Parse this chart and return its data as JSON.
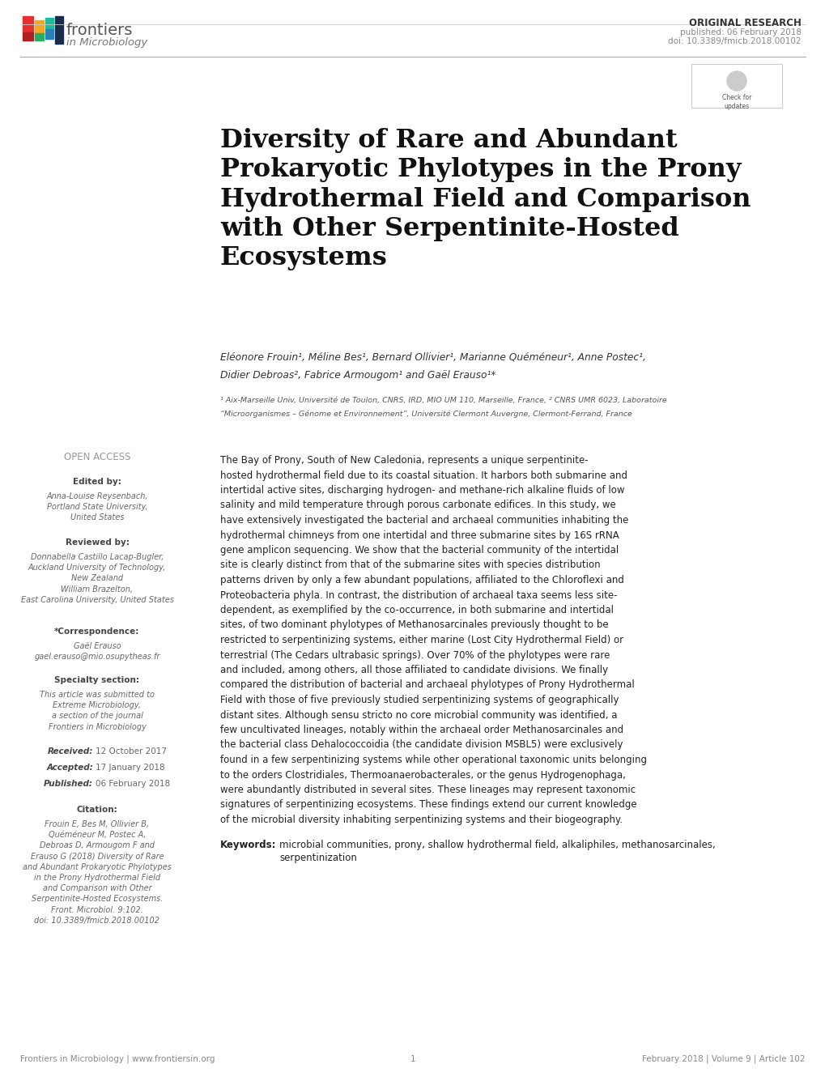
{
  "bg_color": "#ffffff",
  "title_text": "Diversity of Rare and Abundant\nProkaryotic Phylotypes in the Prony\nHydrothermal Field and Comparison\nwith Other Serpentinite-Hosted\nEcosystems",
  "authors_line1": "Eléonore Frouin¹, Méline Bes¹, Bernard Ollivier¹, Marianne Quéméneur¹, Anne Postec¹,",
  "authors_line2": "Didier Debroas², Fabrice Armougom¹ and Gaël Erauso¹*",
  "affiliation1": "¹ Aix-Marseille Univ, Université de Toulon, CNRS, IRD, MIO UM 110, Marseille, France, ² CNRS UMR 6023, Laboratoire",
  "affiliation2": "“Microorganismes – Génome et Environnement”, Université Clermont Auvergne, Clermont-Ferrand, France",
  "open_access_label": "OPEN ACCESS",
  "edited_by_label": "Edited by:",
  "edited_by_name": "Anna-Louise Reysenbach,\nPortland State University,\nUnited States",
  "reviewed_by_label": "Reviewed by:",
  "reviewed_by_name": "Donnabella Castillo Lacap-Bugler,\nAuckland University of Technology,\nNew Zealand\nWilliam Brazelton,\nEast Carolina University, United States",
  "correspondence_label": "*Correspondence:",
  "correspondence_name": "Gaël Erauso\ngael.erauso@mio.osupytheas.fr",
  "specialty_label": "Specialty section:",
  "specialty_text": "This article was submitted to\nExtreme Microbiology,\na section of the journal\nFrontiers in Microbiology",
  "received_label": "Received:",
  "received_date": "12 October 2017",
  "accepted_label": "Accepted:",
  "accepted_date": "17 January 2018",
  "published_label": "Published:",
  "published_date": "06 February 2018",
  "citation_label": "Citation:",
  "citation_text": "Frouin E, Bes M, Ollivier B,\nQuéméneur M, Postec A,\nDebroas D, Armougom F and\nErauso G (2018) Diversity of Rare\nand Abundant Prokaryotic Phylotypes\nin the Prony Hydrothermal Field\nand Comparison with Other\nSerpentinite-Hosted Ecosystems.\nFront. Microbiol. 9:102.\ndoi: 10.3389/fmicb.2018.00102",
  "keywords_label": "Keywords:",
  "keywords_text": "microbial communities, prony, shallow hydrothermal field, alkaliphiles, methanosarcinales,\nserpentinization",
  "footer_journal": "Frontiers in Microbiology | www.frontiersin.org",
  "footer_page": "1",
  "footer_date": "February 2018 | Volume 9 | Article 102",
  "orig_research_text": "ORIGINAL RESEARCH",
  "pub_date_text": "published: 06 February 2018",
  "doi_text": "doi: 10.3389/fmicb.2018.00102",
  "abstract_lines": [
    "The Bay of Prony, South of New Caledonia, represents a unique serpentinite-",
    "hosted hydrothermal field due to its coastal situation. It harbors both submarine and",
    "intertidal active sites, discharging hydrogen- and methane-rich alkaline fluids of low",
    "salinity and mild temperature through porous carbonate edifices. In this study, we",
    "have extensively investigated the bacterial and archaeal communities inhabiting the",
    "hydrothermal chimneys from one intertidal and three submarine sites by 16S rRNA",
    "gene amplicon sequencing. We show that the bacterial community of the intertidal",
    "site is clearly distinct from that of the submarine sites with species distribution",
    "patterns driven by only a few abundant populations, affiliated to the Chloroflexi and",
    "Proteobacteria phyla. In contrast, the distribution of archaeal taxa seems less site-",
    "dependent, as exemplified by the co-occurrence, in both submarine and intertidal",
    "sites, of two dominant phylotypes of Methanosarcinales previously thought to be",
    "restricted to serpentinizing systems, either marine (Lost City Hydrothermal Field) or",
    "terrestrial (The Cedars ultrabasic springs). Over 70% of the phylotypes were rare",
    "and included, among others, all those affiliated to candidate divisions. We finally",
    "compared the distribution of bacterial and archaeal phylotypes of Prony Hydrothermal",
    "Field with those of five previously studied serpentinizing systems of geographically",
    "distant sites. Although sensu stricto no core microbial community was identified, a",
    "few uncultivated lineages, notably within the archaeal order Methanosarcinales and",
    "the bacterial class Dehalococcoidia (the candidate division MSBL5) were exclusively",
    "found in a few serpentinizing systems while other operational taxonomic units belonging",
    "to the orders Clostridiales, Thermoanaerobacterales, or the genus Hydrogenophaga,",
    "were abundantly distributed in several sites. These lineages may represent taxonomic",
    "signatures of serpentinizing ecosystems. These findings extend our current knowledge",
    "of the microbial diversity inhabiting serpentinizing systems and their biogeography."
  ]
}
